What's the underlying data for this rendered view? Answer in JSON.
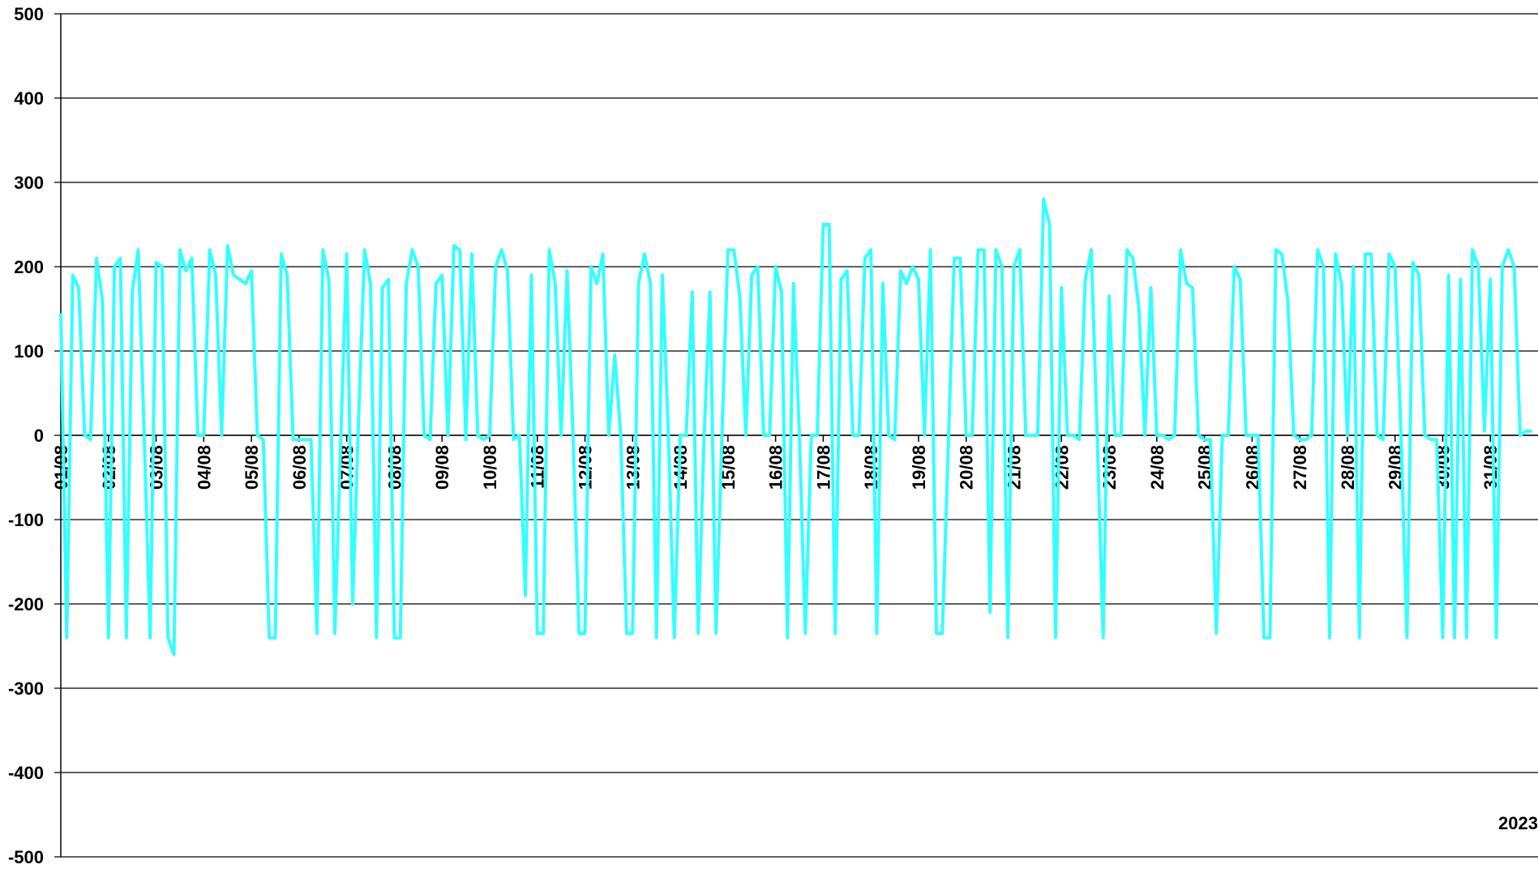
{
  "chart_data": {
    "type": "line",
    "note_text": "2023",
    "x": [
      0,
      0.125,
      0.25,
      0.375,
      0.5,
      0.625,
      0.75,
      0.875,
      1,
      1.125,
      1.25,
      1.375,
      1.5,
      1.625,
      1.75,
      1.875,
      2,
      2.125,
      2.25,
      2.375,
      2.5,
      2.625,
      2.75,
      2.875,
      3,
      3.125,
      3.25,
      3.375,
      3.5,
      3.625,
      3.75,
      3.875,
      4,
      4.125,
      4.25,
      4.375,
      4.5,
      4.625,
      4.75,
      4.875,
      5,
      5.125,
      5.25,
      5.375,
      5.5,
      5.625,
      5.75,
      5.875,
      6,
      6.125,
      6.25,
      6.375,
      6.5,
      6.625,
      6.75,
      6.875,
      7,
      7.125,
      7.25,
      7.375,
      7.5,
      7.625,
      7.75,
      7.875,
      8,
      8.125,
      8.25,
      8.375,
      8.5,
      8.625,
      8.75,
      8.875,
      9,
      9.125,
      9.25,
      9.375,
      9.5,
      9.625,
      9.75,
      9.875,
      10,
      10.125,
      10.25,
      10.375,
      10.5,
      10.625,
      10.75,
      10.875,
      11,
      11.125,
      11.25,
      11.375,
      11.5,
      11.625,
      11.75,
      11.875,
      12,
      12.125,
      12.25,
      12.375,
      12.5,
      12.625,
      12.75,
      12.875,
      13,
      13.125,
      13.25,
      13.375,
      13.5,
      13.625,
      13.75,
      13.875,
      14,
      14.125,
      14.25,
      14.375,
      14.5,
      14.625,
      14.75,
      14.875,
      15,
      15.125,
      15.25,
      15.375,
      15.5,
      15.625,
      15.75,
      15.875,
      16,
      16.125,
      16.25,
      16.375,
      16.5,
      16.625,
      16.75,
      16.875,
      17,
      17.125,
      17.25,
      17.375,
      17.5,
      17.625,
      17.75,
      17.875,
      18,
      18.125,
      18.25,
      18.375,
      18.5,
      18.625,
      18.75,
      18.875,
      19,
      19.125,
      19.25,
      19.375,
      19.5,
      19.625,
      19.75,
      19.875,
      20,
      20.125,
      20.25,
      20.375,
      20.5,
      20.625,
      20.75,
      20.875,
      21,
      21.125,
      21.25,
      21.375,
      21.5,
      21.625,
      21.75,
      21.875,
      22,
      22.125,
      22.25,
      22.375,
      22.5,
      22.625,
      22.75,
      22.875,
      23,
      23.125,
      23.25,
      23.375,
      23.5,
      23.625,
      23.75,
      23.875,
      24,
      24.125,
      24.25,
      24.375,
      24.5,
      24.625,
      24.75,
      24.875,
      25,
      25.125,
      25.25,
      25.375,
      25.5,
      25.625,
      25.75,
      25.875,
      26,
      26.125,
      26.25,
      26.375,
      26.5,
      26.625,
      26.75,
      26.875,
      27,
      27.125,
      27.25,
      27.375,
      27.5,
      27.625,
      27.75,
      27.875,
      28,
      28.125,
      28.25,
      28.375,
      28.5,
      28.625,
      28.75,
      28.875,
      29,
      29.125,
      29.25,
      29.375,
      29.5,
      29.625,
      29.75,
      29.875,
      30,
      30.125,
      30.25,
      30.375,
      30.5,
      30.625,
      30.75,
      30.875
    ],
    "series": [
      {
        "color": "#33ffff",
        "values": [
          145,
          -240,
          190,
          175,
          0,
          -5,
          210,
          160,
          -240,
          200,
          210,
          -240,
          170,
          220,
          0,
          -240,
          205,
          200,
          -240,
          -260,
          220,
          195,
          210,
          0,
          0,
          220,
          190,
          0,
          225,
          190,
          185,
          180,
          195,
          0,
          -5,
          -240,
          -240,
          215,
          190,
          -5,
          -5,
          -5,
          -5,
          -235,
          220,
          185,
          -235,
          -5,
          215,
          -200,
          20,
          220,
          180,
          -240,
          175,
          185,
          -240,
          -240,
          180,
          220,
          200,
          0,
          -5,
          180,
          190,
          0,
          225,
          220,
          -5,
          215,
          0,
          -5,
          0,
          200,
          220,
          195,
          -5,
          0,
          -190,
          190,
          -235,
          -235,
          220,
          180,
          0,
          195,
          0,
          -235,
          -235,
          200,
          180,
          215,
          0,
          95,
          0,
          -235,
          -235,
          180,
          215,
          180,
          -240,
          190,
          0,
          -240,
          0,
          0,
          170,
          -235,
          0,
          170,
          -235,
          0,
          220,
          220,
          165,
          0,
          190,
          200,
          0,
          0,
          200,
          170,
          -240,
          180,
          0,
          -235,
          0,
          0,
          250,
          250,
          -235,
          185,
          195,
          0,
          0,
          210,
          220,
          -235,
          180,
          0,
          -5,
          195,
          180,
          200,
          185,
          0,
          220,
          -235,
          -235,
          -10,
          210,
          210,
          0,
          0,
          220,
          220,
          -210,
          220,
          200,
          -240,
          200,
          220,
          0,
          0,
          0,
          280,
          250,
          -240,
          175,
          0,
          0,
          -5,
          185,
          220,
          0,
          -240,
          165,
          0,
          0,
          220,
          210,
          150,
          0,
          175,
          0,
          0,
          -5,
          0,
          220,
          180,
          175,
          0,
          -5,
          -5,
          -235,
          0,
          0,
          200,
          185,
          0,
          0,
          0,
          -240,
          -240,
          220,
          215,
          160,
          0,
          -5,
          -5,
          0,
          220,
          200,
          -240,
          215,
          180,
          0,
          200,
          -240,
          215,
          215,
          0,
          -5,
          215,
          200,
          0,
          -240,
          205,
          190,
          0,
          -5,
          -5,
          -240,
          190,
          -240,
          185,
          -240,
          220,
          200,
          5,
          185,
          -240,
          200,
          220,
          200,
          0,
          5,
          5
        ]
      }
    ],
    "xlim": [
      0,
      31
    ],
    "xticks": [
      {
        "value": 0,
        "label": "01/08"
      },
      {
        "value": 1,
        "label": "02/08"
      },
      {
        "value": 2,
        "label": "03/08"
      },
      {
        "value": 3,
        "label": "04/08"
      },
      {
        "value": 4,
        "label": "05/08"
      },
      {
        "value": 5,
        "label": "06/08"
      },
      {
        "value": 6,
        "label": "07/08"
      },
      {
        "value": 7,
        "label": "08/08"
      },
      {
        "value": 8,
        "label": "09/08"
      },
      {
        "value": 9,
        "label": "10/08"
      },
      {
        "value": 10,
        "label": "11/08"
      },
      {
        "value": 11,
        "label": "12/08"
      },
      {
        "value": 12,
        "label": "13/08"
      },
      {
        "value": 13,
        "label": "14/08"
      },
      {
        "value": 14,
        "label": "15/08"
      },
      {
        "value": 15,
        "label": "16/08"
      },
      {
        "value": 16,
        "label": "17/08"
      },
      {
        "value": 17,
        "label": "18/08"
      },
      {
        "value": 18,
        "label": "19/08"
      },
      {
        "value": 19,
        "label": "20/08"
      },
      {
        "value": 20,
        "label": "21/08"
      },
      {
        "value": 21,
        "label": "22/08"
      },
      {
        "value": 22,
        "label": "23/08"
      },
      {
        "value": 23,
        "label": "24/08"
      },
      {
        "value": 24,
        "label": "25/08"
      },
      {
        "value": 25,
        "label": "26/08"
      },
      {
        "value": 26,
        "label": "27/08"
      },
      {
        "value": 27,
        "label": "28/08"
      },
      {
        "value": 28,
        "label": "29/08"
      },
      {
        "value": 29,
        "label": "30/08"
      },
      {
        "value": 30,
        "label": "31/08"
      }
    ],
    "ylim": [
      -500,
      500
    ],
    "yticks": [
      -500,
      -400,
      -300,
      -200,
      -100,
      0,
      100,
      200,
      300,
      400,
      500
    ],
    "grid": true
  }
}
